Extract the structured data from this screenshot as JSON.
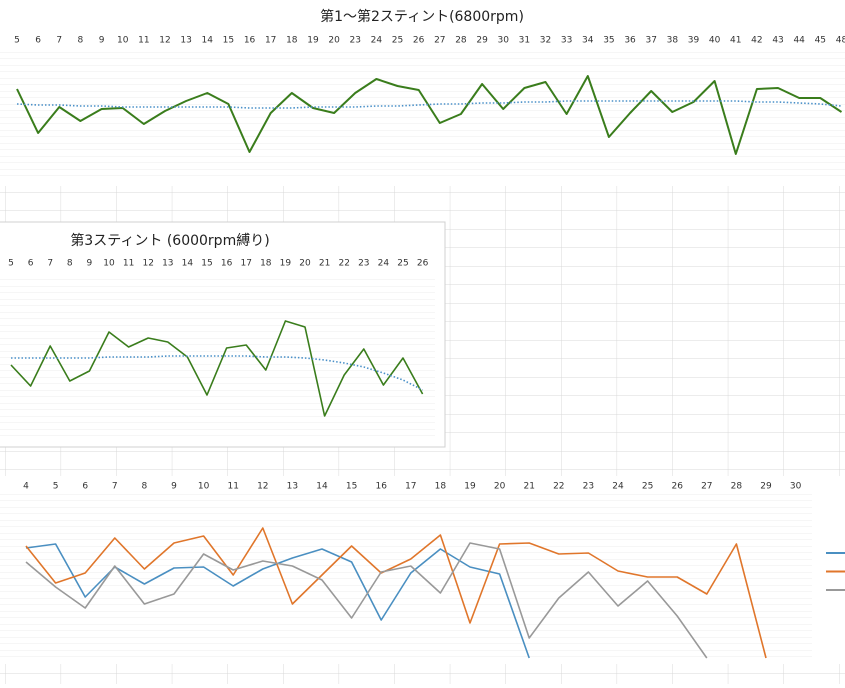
{
  "chart_data": [
    {
      "type": "line",
      "title": "第1～第2スティント(6800rpm)",
      "categories": [
        "5",
        "6",
        "7",
        "8",
        "9",
        "10",
        "11",
        "12",
        "13",
        "14",
        "15",
        "16",
        "17",
        "18",
        "19",
        "20",
        "23",
        "24",
        "25",
        "26",
        "27",
        "28",
        "29",
        "30",
        "31",
        "32",
        "33",
        "34",
        "35",
        "36",
        "37",
        "38",
        "39",
        "40",
        "41",
        "42",
        "43",
        "44",
        "45",
        "48"
      ],
      "ylim": [
        0,
        130
      ],
      "series": [
        {
          "color": "#3a7d1c",
          "values": [
            91,
            47,
            73,
            59,
            71,
            72,
            56,
            69,
            79,
            87,
            76,
            28,
            67,
            87,
            72,
            67,
            87,
            101,
            94,
            90,
            57,
            66,
            96,
            71,
            92,
            98,
            66,
            104,
            43,
            67,
            89,
            68,
            78,
            99,
            26,
            91,
            92,
            82,
            82,
            68
          ]
        },
        {
          "color": "#4a90c8",
          "style": "dotted",
          "values": [
            76,
            75,
            75,
            74,
            74,
            73,
            73,
            73,
            73,
            73,
            73,
            72,
            72,
            72,
            73,
            73,
            73,
            74,
            74,
            75,
            76,
            76,
            77,
            77,
            78,
            78,
            79,
            79,
            79,
            79,
            79,
            79,
            79,
            79,
            79,
            78,
            78,
            77,
            76,
            74
          ]
        }
      ]
    },
    {
      "type": "line",
      "title": "第3スティント (6000rpm縛り)",
      "categories": [
        "5",
        "6",
        "7",
        "8",
        "9",
        "10",
        "11",
        "12",
        "13",
        "14",
        "15",
        "16",
        "17",
        "18",
        "19",
        "20",
        "21",
        "22",
        "23",
        "24",
        "25",
        "26"
      ],
      "ylim": [
        0,
        165
      ],
      "series": [
        {
          "color": "#3a7d1c",
          "values": [
            75,
            54,
            94,
            59,
            69,
            108,
            93,
            102,
            98,
            83,
            45,
            92,
            95,
            70,
            119,
            113,
            24,
            65,
            91,
            55,
            82,
            46
          ]
        },
        {
          "color": "#4a90c8",
          "style": "dotted",
          "values": [
            82,
            82,
            82,
            82,
            82,
            83,
            83,
            83,
            84,
            84,
            84,
            84,
            84,
            83,
            83,
            82,
            80,
            77,
            73,
            67,
            60,
            50
          ]
        }
      ]
    },
    {
      "type": "line",
      "legend": "right",
      "categories": [
        "4",
        "5",
        "6",
        "7",
        "8",
        "9",
        "10",
        "11",
        "12",
        "13",
        "14",
        "15",
        "16",
        "17",
        "18",
        "19",
        "20",
        "21",
        "22",
        "23",
        "24",
        "25",
        "26",
        "27",
        "28",
        "29",
        "30"
      ],
      "ylim": [
        0,
        175
      ],
      "series": [
        {
          "color": "#4a8fc1",
          "values": [
            117,
            121,
            68,
            98,
            81,
            97,
            98,
            79,
            96,
            107,
            116,
            103,
            45,
            92,
            116,
            98,
            91,
            7,
            null,
            null,
            null,
            null,
            null,
            null,
            null,
            null,
            null
          ]
        },
        {
          "color": "#e0762b",
          "values": [
            119,
            82,
            92,
            127,
            96,
            122,
            129,
            90,
            137,
            61,
            90,
            119,
            92,
            106,
            130,
            42,
            121,
            122,
            111,
            112,
            94,
            88,
            88,
            71,
            121,
            7,
            null
          ]
        },
        {
          "color": "#999999",
          "values": [
            103,
            78,
            57,
            99,
            61,
            71,
            111,
            95,
            104,
            99,
            85,
            47,
            93,
            99,
            72,
            122,
            116,
            27,
            67,
            93,
            59,
            84,
            49,
            7,
            null,
            null,
            null
          ]
        }
      ]
    }
  ]
}
